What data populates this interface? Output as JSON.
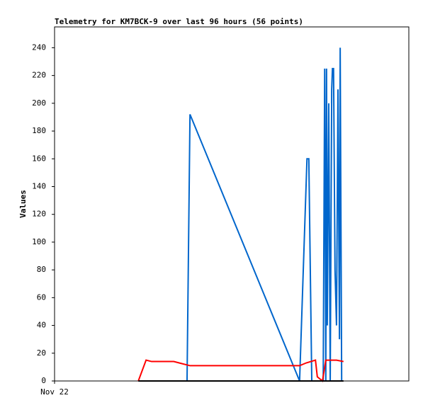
{
  "chart_data": {
    "type": "line",
    "title": "Telemetry for KM7BCK-9 over last 96 hours (56 points)",
    "y_label": "Values",
    "xlim": [
      0,
      96
    ],
    "xticks": [
      {
        "value": 0,
        "label": "Nov 22"
      }
    ],
    "ylim": [
      0,
      255
    ],
    "yticks": [
      0,
      20,
      40,
      60,
      80,
      100,
      120,
      140,
      160,
      180,
      200,
      220,
      240
    ],
    "grid": false,
    "series": [
      {
        "color": "#0066cc",
        "x": [
          35.9,
          36.7,
          66.4,
          68.4,
          68.9,
          69.7,
          72.8,
          73.2,
          73.5,
          73.7,
          73.9,
          74.3,
          74.7,
          75.1,
          75.3,
          75.6,
          76.0,
          76.4,
          76.8,
          77.2,
          77.4,
          77.8
        ],
        "values": [
          0,
          192,
          0,
          160,
          160,
          0,
          0,
          225,
          0,
          225,
          40,
          200,
          0,
          210,
          225,
          225,
          80,
          40,
          210,
          30,
          240,
          0
        ]
      },
      {
        "color": "#ff0000",
        "x": [
          22.7,
          24.8,
          26.3,
          32.3,
          36.7,
          66.4,
          68.2,
          70.7,
          71.2,
          72.6,
          73.5,
          76.4,
          78.3
        ],
        "values": [
          0,
          15,
          14,
          14,
          11,
          11,
          13,
          15,
          3,
          0,
          15,
          15,
          14
        ]
      },
      {
        "color": "#000000",
        "x": [
          22.7,
          78.3
        ],
        "values": [
          0,
          0
        ]
      }
    ]
  }
}
